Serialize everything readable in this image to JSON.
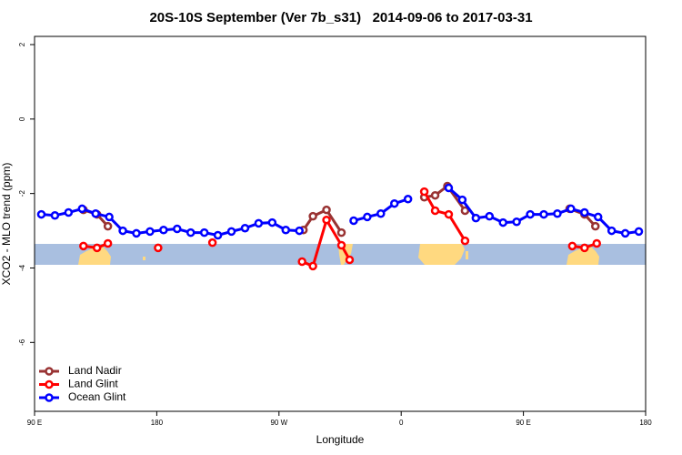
{
  "chart_data": {
    "type": "line",
    "title": "20S-10S September (Ver 7b_s31)   2014-09-06 to 2017-03-31",
    "x_label": "Longitude",
    "y_label": "XCO2 - MLO trend (ppm)",
    "xlim": [
      90,
      540
    ],
    "xticks": [
      {
        "value": 90,
        "label": "90 E"
      },
      {
        "value": 180,
        "label": "180"
      },
      {
        "value": 270,
        "label": "90 W"
      },
      {
        "value": 360,
        "label": "0"
      },
      {
        "value": 450,
        "label": "90 E"
      },
      {
        "value": 540,
        "label": "180"
      }
    ],
    "ylim": [
      -7.85,
      2.22
    ],
    "yticks": [
      -6,
      -4,
      -2,
      0,
      2
    ],
    "legend": "bottomleft",
    "series": [
      {
        "name": "Land Nadir",
        "color": "#993333",
        "x": [
          126,
          136,
          144,
          null,
          288,
          295,
          305,
          316,
          null,
          377,
          385,
          394,
          407,
          null,
          484,
          495,
          503
        ],
        "values": [
          -2.44,
          -2.56,
          -2.88,
          null,
          -2.98,
          -2.61,
          -2.44,
          -3.05,
          null,
          -2.1,
          -2.05,
          -1.8,
          -2.46,
          null,
          -2.41,
          -2.56,
          -2.88
        ]
      },
      {
        "name": "Land Glint",
        "color": "#ff0000",
        "x": [
          126,
          136,
          144,
          null,
          181,
          null,
          221,
          null,
          287,
          295,
          305,
          316,
          322,
          null,
          377,
          385,
          395,
          407,
          null,
          486,
          495,
          504
        ],
        "values": [
          -3.41,
          -3.46,
          -3.34,
          null,
          -3.46,
          null,
          -3.32,
          null,
          -3.83,
          -3.95,
          -2.71,
          -3.39,
          -3.78,
          null,
          -1.95,
          -2.46,
          -2.56,
          -3.27,
          null,
          -3.41,
          -3.46,
          -3.34
        ]
      },
      {
        "name": "Ocean Glint",
        "color": "#0000ff",
        "x": [
          95,
          105,
          115,
          125,
          135,
          145,
          155,
          165,
          175,
          185,
          195,
          205,
          215,
          225,
          235,
          245,
          255,
          265,
          275,
          285,
          null,
          325,
          335,
          345,
          355,
          365,
          null,
          395,
          405,
          415,
          425,
          435,
          445,
          455,
          465,
          475,
          485,
          495,
          505,
          515,
          525,
          535
        ],
        "values": [
          -2.56,
          -2.59,
          -2.51,
          -2.41,
          -2.54,
          -2.63,
          -3.0,
          -3.07,
          -3.02,
          -2.98,
          -2.95,
          -3.05,
          -3.05,
          -3.12,
          -3.02,
          -2.93,
          -2.8,
          -2.78,
          -2.98,
          -3.0,
          null,
          -2.73,
          -2.63,
          -2.54,
          -2.27,
          -2.15,
          null,
          -1.85,
          -2.17,
          -2.66,
          -2.61,
          -2.78,
          -2.76,
          -2.56,
          -2.56,
          -2.54,
          -2.41,
          -2.51,
          -2.63,
          -3.0,
          -3.07,
          -3.02
        ]
      }
    ]
  }
}
